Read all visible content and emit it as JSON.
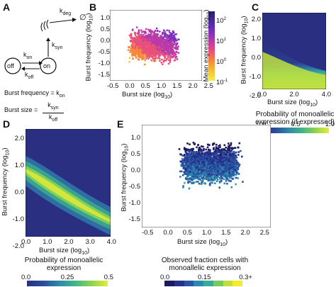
{
  "panel_labels": {
    "a": "A",
    "b": "B",
    "c": "C",
    "d": "D",
    "e": "E"
  },
  "panel_a": {
    "state_off": "off",
    "state_on": "on",
    "rate_kon": "k",
    "rate_kon_sub": "on",
    "rate_koff": "k",
    "rate_koff_sub": "off",
    "rate_ksyn": "k",
    "rate_ksyn_sub": "syn",
    "rate_kdeg": "k",
    "rate_kdeg_sub": "deg",
    "degraded": "∅",
    "eq1_lhs": "Burst frequency = k",
    "eq1_sub": "on",
    "eq2_lhs": "Burst size =",
    "eq2_num": "k",
    "eq2_num_sub": "syn",
    "eq2_den": "k",
    "eq2_den_sub": "off"
  },
  "panel_b": {
    "xlabel": "Burst size (log",
    "xlabel_sub": "10",
    "xlabel_end": ")",
    "ylabel": "Burst frequency (log",
    "ylabel_sub": "10",
    "ylabel_end": ")",
    "xticks": [
      "-0.5",
      "0.0",
      "0.5",
      "1.0",
      "1.5",
      "2.0",
      "2.5"
    ],
    "yticks": [
      "1.0",
      "0.5",
      "0.0",
      "-0.5",
      "-1.0",
      "-1.5"
    ],
    "cbar_title": "Mean expression (log",
    "cbar_title_sub": "10",
    "cbar_title_end": ")",
    "cbar_ticks": [
      "10",
      "10",
      "10",
      "10"
    ],
    "cbar_tick_exp": [
      "2",
      "1",
      "0",
      "-1"
    ]
  },
  "panel_c": {
    "xlabel": "Burst size (log",
    "xlabel_sub": "10",
    "xlabel_end": ")",
    "ylabel": "Burst frequency (log",
    "ylabel_sub": "10",
    "ylabel_end": ")",
    "xticks": [
      "0.0",
      "2.0",
      "4.0"
    ],
    "yticks": [
      "2.0",
      "1.0",
      "0.0",
      "-1.0",
      "-2.0"
    ],
    "cbar_title_line1": "Probability of monoallelic",
    "cbar_title_line2": "expression (if expressed)",
    "cbar_ticks": [
      "0.0",
      "0.5",
      "1.0"
    ]
  },
  "panel_d": {
    "xlabel": "Burst size (log",
    "xlabel_sub": "10",
    "xlabel_end": ")",
    "ylabel": "Burst frequency (log",
    "ylabel_sub": "10",
    "ylabel_end": ")",
    "xticks": [
      "0.0",
      "1.0",
      "2.0",
      "3.0",
      "4.0"
    ],
    "yticks": [
      "2.0",
      "1.0",
      "0.0",
      "-1.0",
      "-2.0"
    ],
    "cbar_title_line1": "Probability of monoallelic",
    "cbar_title_line2": "expression",
    "cbar_ticks": [
      "0.0",
      "0.25",
      "0.5"
    ]
  },
  "panel_e": {
    "xlabel": "Burst size (log",
    "xlabel_sub": "10",
    "xlabel_end": ")",
    "ylabel": "Burst frequency (log",
    "ylabel_sub": "10",
    "ylabel_end": ")",
    "xticks": [
      "-0.5",
      "0.0",
      "0.5",
      "1.0",
      "1.5",
      "2.0",
      "2.5"
    ],
    "yticks": [
      "1.0",
      "0.5",
      "0.0",
      "-0.5",
      "-1.0",
      "-1.5"
    ],
    "cbar_title_line1": "Observed fraction cells with",
    "cbar_title_line2": "monoallelic expression",
    "cbar_ticks": [
      "0.0",
      "0.15",
      "0.3+"
    ]
  },
  "colors": {
    "navy": "#2b2f7e",
    "purple": "#6a2c8e",
    "magenta": "#c0318f",
    "orange": "#f58a2d",
    "yellow": "#f2e61c",
    "green": "#9bd93c",
    "teal": "#2aa79b",
    "blue": "#2e4f9a"
  }
}
